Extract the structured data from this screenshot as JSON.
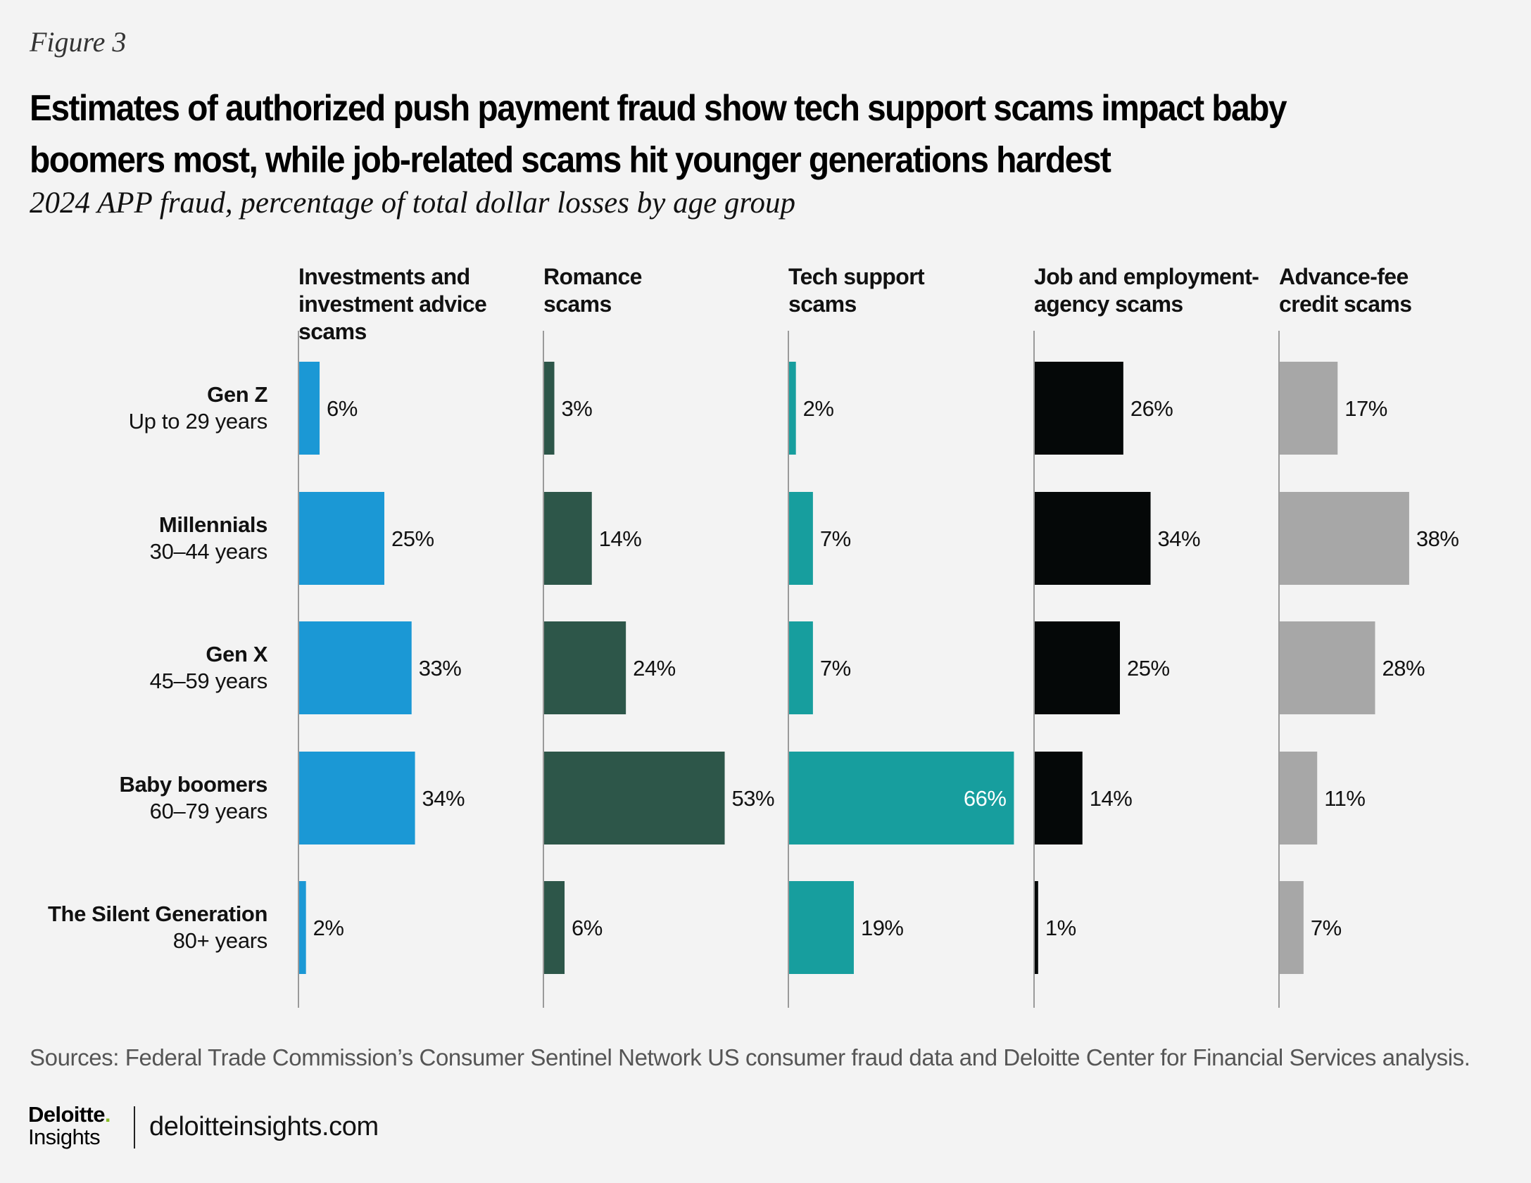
{
  "figure_label": "Figure 3",
  "title_line1": "Estimates of authorized push payment fraud show tech support scams impact baby",
  "title_line2": "boomers most, while job-related scams hit younger generations hardest",
  "subtitle": "2024 APP fraud, percentage of total dollar losses by age group",
  "source": "Sources: Federal Trade Commission’s Consumer Sentinel Network US consumer fraud data and Deloitte Center for Financial Services analysis.",
  "footer": {
    "brand": "Deloitte",
    "brand_dot": ".",
    "brand_sub": "Insights",
    "site": "deloitteinsights.com"
  },
  "chart_data": {
    "type": "bar",
    "orientation": "horizontal",
    "layout": "small-multiples",
    "title": "Estimates of authorized push payment fraud show tech support scams impact baby boomers most, while job-related scams hit younger generations hardest",
    "subtitle": "2024 APP fraud, percentage of total dollar losses by age group",
    "unit": "%",
    "xlim": [
      0,
      70
    ],
    "categories": [
      {
        "name": "Gen Z",
        "age": "Up to 29 years"
      },
      {
        "name": "Millennials",
        "age": "30–44 years"
      },
      {
        "name": "Gen X",
        "age": "45–59 years"
      },
      {
        "name": "Baby  boomers",
        "age": "60–79 years"
      },
      {
        "name": "The Silent Generation",
        "age": "80+ years"
      }
    ],
    "series": [
      {
        "name": "Investments and investment advice scams",
        "header_lines": [
          "Investments and",
          "investment advice",
          "scams"
        ],
        "color": "#1b98d5",
        "values": [
          6,
          25,
          33,
          34,
          2
        ]
      },
      {
        "name": "Romance scams",
        "header_lines": [
          "Romance",
          "scams"
        ],
        "color": "#2d5649",
        "values": [
          3,
          14,
          24,
          53,
          6
        ]
      },
      {
        "name": "Tech support scams",
        "header_lines": [
          "Tech support",
          "scams"
        ],
        "color": "#179e9e",
        "values": [
          2,
          7,
          7,
          66,
          19
        ]
      },
      {
        "name": "Job and employment-agency scams",
        "header_lines": [
          "Job and employment-",
          "agency scams"
        ],
        "color": "#050808",
        "values": [
          26,
          34,
          25,
          14,
          1
        ]
      },
      {
        "name": "Advance-fee credit scams",
        "header_lines": [
          "Advance-fee",
          "credit scams"
        ],
        "color": "#a7a7a7",
        "values": [
          17,
          38,
          28,
          11,
          7
        ]
      }
    ]
  }
}
